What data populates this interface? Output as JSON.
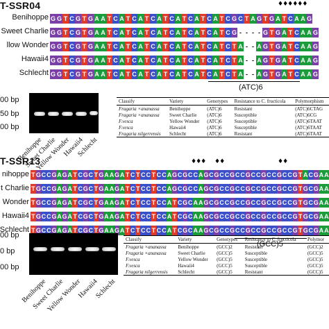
{
  "panel_a": {
    "title": "T-SSR04",
    "rows": [
      "Benihoppe",
      "Sweet Charlie",
      "llow Wonder",
      "Hawaii4",
      "Schlecht"
    ],
    "motif": "(ATC)6",
    "arrows": "♦♦♦♦♦♦",
    "ladder": [
      "00 bp",
      "50 bp",
      "00 bp"
    ],
    "lanes": [
      "Benihoppe",
      "Sweet Charlie",
      "Yellow Wonder",
      "Hawaii4",
      "Schlecht"
    ],
    "table": {
      "headers": [
        "Classify",
        "Variety",
        "Genotypes",
        "Resistance to C. fructicola",
        "Polymorphism"
      ],
      "rows": [
        [
          "Fragaria ×ananassa",
          "Benihoppe",
          "(ATC)6",
          "Resistant",
          "(ATC)6CTAG"
        ],
        [
          "Fragaria ×ananassa",
          "Sweet Charlie",
          "(ATC)6",
          "Susceptible",
          "(ATC)6CG"
        ],
        [
          "F.vesca",
          "Yellow Wonder",
          "(ATC)6",
          "Susceptible",
          "(ATC)6TAAT"
        ],
        [
          "F.vesca",
          "Hawaii4",
          "(ATC)6",
          "Susceptible",
          "(ATC)6TAAT"
        ],
        [
          "Fragaria nilgerrensis",
          "Schlecht",
          "(ATC)6",
          "Resistant",
          "(ATC)6TAAT"
        ]
      ]
    }
  },
  "panel_b": {
    "title": "T-SSR13",
    "rows": [
      "nihoppe",
      "t Charlie",
      "Wonder",
      "Hawaii4",
      "Schlecht"
    ],
    "motif": "(GCC)5",
    "arrows": [
      "♦♦♦",
      "♦♦",
      "♦♦"
    ],
    "ladder": [
      "00 bp",
      "0 bp",
      "00 bp"
    ],
    "lanes": [
      "Benihoppe",
      "Sweet Charlie",
      "Yellow Wonder",
      "Hawaii4",
      "Schlecht"
    ],
    "table": {
      "headers": [
        "Classify",
        "Variety",
        "Genotypes",
        "Resistance to C. fructicola",
        "Polymor"
      ],
      "rows": [
        [
          "Fragaria ×ananassa",
          "Benihoppe",
          "(GCC)2",
          "Resistant",
          "(GCC)2"
        ],
        [
          "Fragaria ×ananassa",
          "Sweet Charlie",
          "(GCC)5",
          "Susceptible",
          "(GCC)5"
        ],
        [
          "F.vesca",
          "Yellow Wonder",
          "(GCC)5",
          "Susceptible",
          "(GCC)5"
        ],
        [
          "F.vesca",
          "Hawaii4",
          "(GCC)5",
          "Susceptible",
          "(GCC)5"
        ],
        [
          "Fragaria nilgerrensis",
          "Schlecht",
          "(GCC)5",
          "Resistant",
          "(GCC)5"
        ]
      ]
    }
  },
  "colors": {
    "A": "#1a9c3a",
    "C": "#3a4fc8",
    "G": "#7b3fa8",
    "T": "#e03b2a",
    "gap": "#ffffff"
  }
}
